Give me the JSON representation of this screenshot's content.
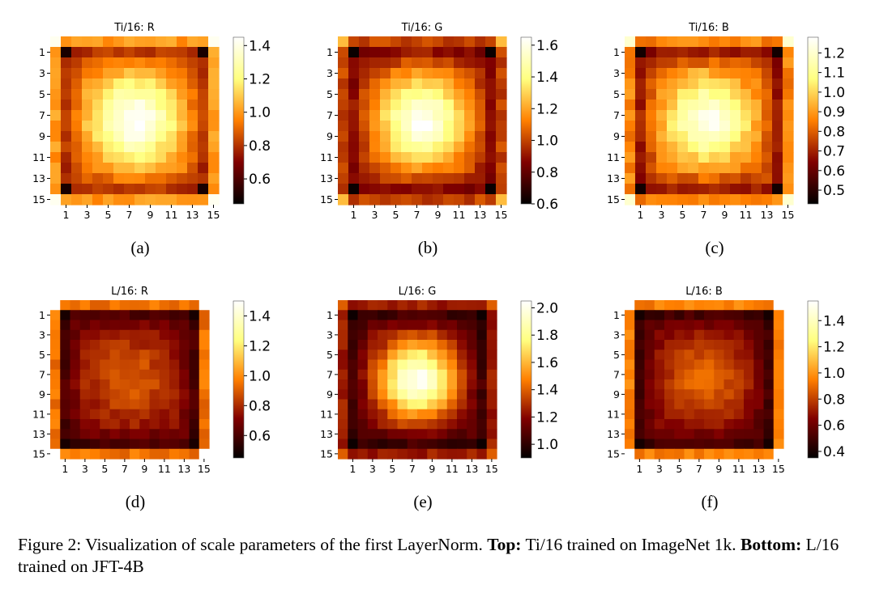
{
  "figure": {
    "caption": {
      "prefix": "Figure 2: Visualization of scale parameters of the first LayerNorm.",
      "top_label": "Top:",
      "top_text": "Ti/16 trained on ImageNet 1k.",
      "bottom_label": "Bottom:",
      "bottom_text": "L/16 trained on JFT-4B"
    }
  },
  "chart_data": [
    {
      "type": "heatmap",
      "title": "Ti/16: R",
      "panel_label": "(a)",
      "colormap": "afmhot",
      "grid_size": 16,
      "tick_labels": [
        "1",
        "3",
        "5",
        "7",
        "9",
        "11",
        "13",
        "15"
      ],
      "vmin": 0.45,
      "vmax": 1.45,
      "colorbar_ticks": [
        "0.6",
        "0.8",
        "1.0",
        "1.2",
        "1.4"
      ],
      "pattern": {
        "base": 0.88,
        "center_peak": 0.57,
        "sigma": 3.1,
        "edge_value": 1.0,
        "inner_corner_value": 0.5,
        "outer_corner_value": 1.42
      }
    },
    {
      "type": "heatmap",
      "title": "Ti/16: G",
      "panel_label": "(b)",
      "colormap": "afmhot",
      "grid_size": 16,
      "tick_labels": [
        "1",
        "3",
        "5",
        "7",
        "9",
        "11",
        "13",
        "15"
      ],
      "vmin": 0.6,
      "vmax": 1.65,
      "colorbar_ticks": [
        "0.6",
        "0.8",
        "1.0",
        "1.2",
        "1.4",
        "1.6"
      ],
      "pattern": {
        "base": 0.95,
        "center_peak": 0.68,
        "sigma": 3.1,
        "edge_value": 1.0,
        "inner_corner_value": 0.62,
        "outer_corner_value": 1.25
      }
    },
    {
      "type": "heatmap",
      "title": "Ti/16: B",
      "panel_label": "(c)",
      "colormap": "afmhot",
      "grid_size": 16,
      "tick_labels": [
        "1",
        "3",
        "5",
        "7",
        "9",
        "11",
        "13",
        "15"
      ],
      "vmin": 0.43,
      "vmax": 1.28,
      "colorbar_ticks": [
        "0.5",
        "0.6",
        "0.7",
        "0.8",
        "0.9",
        "1.0",
        "1.1",
        "1.2"
      ],
      "pattern": {
        "base": 0.78,
        "center_peak": 0.47,
        "sigma": 3.0,
        "edge_value": 0.86,
        "inner_corner_value": 0.46,
        "outer_corner_value": 1.2
      }
    },
    {
      "type": "heatmap",
      "title": "L/16: R",
      "panel_label": "(d)",
      "colormap": "afmhot",
      "grid_size": 16,
      "tick_labels": [
        "1",
        "3",
        "5",
        "7",
        "9",
        "11",
        "13",
        "15"
      ],
      "vmin": 0.45,
      "vmax": 1.5,
      "colorbar_ticks": [
        "0.6",
        "0.8",
        "1.0",
        "1.2",
        "1.4"
      ],
      "pattern": {
        "base": 0.7,
        "center_peak": 0.2,
        "sigma": 3.3,
        "edge_value": 0.95,
        "inner_corner_value": 0.5,
        "outer_corner_value": 1.5
      }
    },
    {
      "type": "heatmap",
      "title": "L/16: G",
      "panel_label": "(e)",
      "colormap": "afmhot",
      "grid_size": 16,
      "tick_labels": [
        "1",
        "3",
        "5",
        "7",
        "9",
        "11",
        "13",
        "15"
      ],
      "vmin": 0.9,
      "vmax": 2.05,
      "colorbar_ticks": [
        "1.0",
        "1.2",
        "1.4",
        "1.6",
        "1.8",
        "2.0"
      ],
      "pattern": {
        "base": 1.12,
        "center_peak": 0.9,
        "sigma": 2.8,
        "edge_value": 1.25,
        "inner_corner_value": 0.93,
        "outer_corner_value": 1.4
      }
    },
    {
      "type": "heatmap",
      "title": "L/16: B",
      "panel_label": "(f)",
      "colormap": "afmhot",
      "grid_size": 16,
      "tick_labels": [
        "1",
        "3",
        "5",
        "7",
        "9",
        "11",
        "13",
        "15"
      ],
      "vmin": 0.35,
      "vmax": 1.55,
      "colorbar_ticks": [
        "0.4",
        "0.6",
        "0.8",
        "1.0",
        "1.2",
        "1.4"
      ],
      "pattern": {
        "base": 0.6,
        "center_peak": 0.3,
        "sigma": 3.3,
        "edge_value": 0.95,
        "inner_corner_value": 0.4,
        "outer_corner_value": 1.55
      }
    }
  ]
}
